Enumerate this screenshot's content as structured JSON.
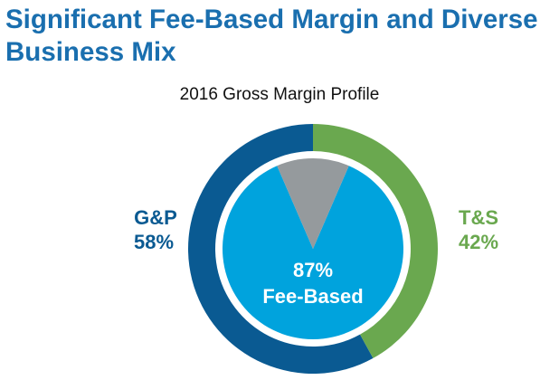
{
  "page": {
    "title": "Significant Fee-Based Margin and Diverse Business Mix"
  },
  "colors": {
    "title": "#1a6faf",
    "gp": "#0a5a92",
    "ts": "#6aa84f",
    "fee_based": "#00a3dd",
    "non_fee_based": "#959a9d",
    "center_text": "#ffffff"
  },
  "chart_data": {
    "type": "pie",
    "title": "2016 Gross Margin Profile",
    "outer_ring": [
      {
        "name": "G&P",
        "value": 58,
        "label_pct": "58%"
      },
      {
        "name": "T&S",
        "value": 42,
        "label_pct": "42%"
      }
    ],
    "inner_pie": [
      {
        "name": "Fee-Based",
        "value": 87,
        "label_pct": "87%"
      },
      {
        "name": "",
        "value": 13
      }
    ]
  }
}
